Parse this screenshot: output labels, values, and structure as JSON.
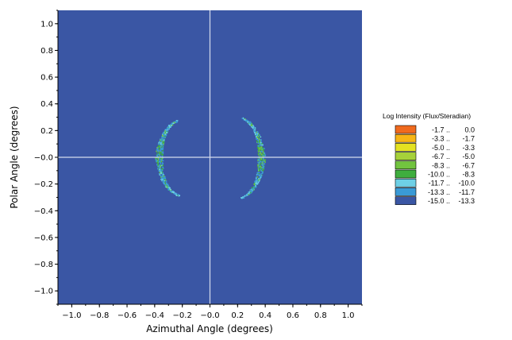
{
  "chart_data": {
    "type": "heatmap",
    "xlabel": "Azimuthal Angle (degrees)",
    "ylabel": "Polar Angle (degrees)",
    "xlim": [
      -1.1,
      1.1
    ],
    "ylim": [
      -1.1,
      1.1
    ],
    "x_ticks": [
      -1.0,
      -0.8,
      -0.6,
      -0.4,
      -0.2,
      0.0,
      0.2,
      0.4,
      0.6,
      0.8,
      1.0
    ],
    "y_ticks": [
      1.0,
      0.8,
      0.6,
      0.4,
      0.2,
      0.0,
      -0.2,
      -0.4,
      -0.6,
      -0.8,
      -1.0
    ],
    "x_tick_labels": [
      "−1.0",
      "−0.8",
      "−0.6",
      "−0.4",
      "−0.2",
      "−0.0",
      "0.2",
      "0.4",
      "0.6",
      "0.8",
      "1.0"
    ],
    "y_tick_labels": [
      "1.0",
      "0.8",
      "0.6",
      "0.4",
      "0.2",
      "−0.0",
      "−0.2",
      "−0.4",
      "−0.6",
      "−0.8",
      "−1.0"
    ],
    "background_color": "#3a56a4",
    "crosshair_color": "#d4dced",
    "legend": {
      "title": "Log Intensity (Flux/Steradian)",
      "placement": "right",
      "entries": [
        {
          "low": "-1.7 ..",
          "high": "0.0",
          "color": "#f06a1e"
        },
        {
          "low": "-3.3 ..",
          "high": "-1.7",
          "color": "#f7b515"
        },
        {
          "low": "-5.0 ..",
          "high": "-3.3",
          "color": "#e4e221"
        },
        {
          "low": "-6.7 ..",
          "high": "-5.0",
          "color": "#a6d13a"
        },
        {
          "low": "-8.3 ..",
          "high": "-6.7",
          "color": "#72c43f"
        },
        {
          "low": "-10.0 ..",
          "high": "-8.3",
          "color": "#3fae3e"
        },
        {
          "low": "-11.7 ..",
          "high": "-10.0",
          "color": "#6ed0e6"
        },
        {
          "low": "-13.3 ..",
          "high": "-11.7",
          "color": "#3a9ad6"
        },
        {
          "low": "-15.0 ..",
          "high": "-13.3",
          "color": "#3a56a4"
        }
      ]
    },
    "arcs": [
      {
        "name": "left",
        "center_x": -0.37,
        "half_height": 0.28,
        "bulge": 0.17,
        "opens": "right"
      },
      {
        "name": "right",
        "center_x": 0.37,
        "half_height": 0.3,
        "bulge": 0.18,
        "opens": "left"
      }
    ]
  }
}
